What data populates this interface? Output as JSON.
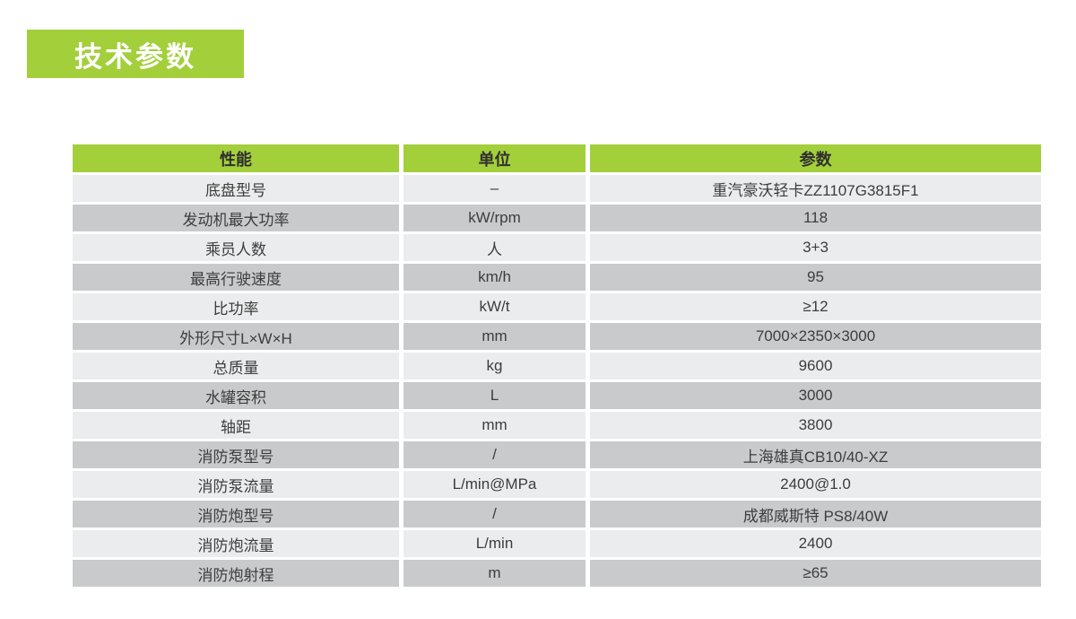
{
  "page": {
    "title": "技术参数"
  },
  "colors": {
    "accent_green": "#a3cf3b",
    "row_light": "#ebeced",
    "row_dark": "#c9cacb",
    "header_text": "#2f2f2f",
    "cell_text": "#3d3d3d"
  },
  "table": {
    "columns": [
      "性能",
      "单位",
      "参数"
    ],
    "rows": [
      {
        "name": "底盘型号",
        "unit": "–",
        "value": "重汽豪沃轻卡ZZ1107G3815F1"
      },
      {
        "name": "发动机最大功率",
        "unit": "kW/rpm",
        "value": "118"
      },
      {
        "name": "乘员人数",
        "unit": "人",
        "value": "3+3"
      },
      {
        "name": "最高行驶速度",
        "unit": "km/h",
        "value": "95"
      },
      {
        "name": "比功率",
        "unit": "kW/t",
        "value": "≥12"
      },
      {
        "name": "外形尺寸L×W×H",
        "unit": "mm",
        "value": "7000×2350×3000"
      },
      {
        "name": "总质量",
        "unit": "kg",
        "value": "9600"
      },
      {
        "name": "水罐容积",
        "unit": "L",
        "value": "3000"
      },
      {
        "name": "轴距",
        "unit": "mm",
        "value": "3800"
      },
      {
        "name": "消防泵型号",
        "unit": "/",
        "value": "上海雄真CB10/40-XZ"
      },
      {
        "name": "消防泵流量",
        "unit": "L/min@MPa",
        "value": "2400@1.0"
      },
      {
        "name": "消防炮型号",
        "unit": "/",
        "value": "成都威斯特 PS8/40W"
      },
      {
        "name": "消防炮流量",
        "unit": "L/min",
        "value": "2400"
      },
      {
        "name": "消防炮射程",
        "unit": "m",
        "value": "≥65"
      }
    ]
  }
}
